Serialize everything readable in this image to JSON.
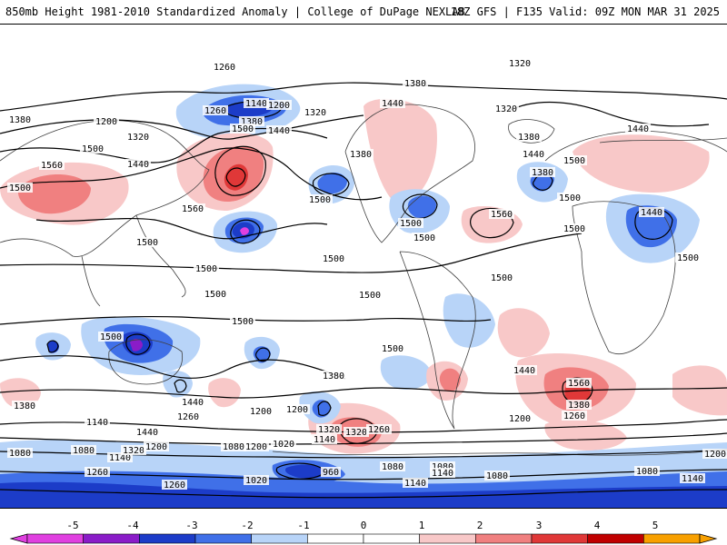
{
  "header": {
    "title": "850mb Height 1981-2010 Standardized Anomaly | College of DuPage NEXLAB",
    "valid": "18Z GFS | F135 Valid: 09Z MON MAR 31 2025"
  },
  "colors": {
    "neg5": "#e040e0",
    "neg4": "#8a1cc8",
    "neg3": "#1c3cc8",
    "neg2": "#4070e8",
    "neg1": "#b8d4f8",
    "zero": "#ffffff",
    "pos1": "#f8c8c8",
    "pos2": "#f08080",
    "pos3": "#e03838",
    "pos4": "#c00000",
    "pos5": "#f8a000",
    "contour": "#000000",
    "coast": "#404040"
  },
  "colorbar": {
    "ticks": [
      "-5",
      "-4",
      "-3",
      "-2",
      "-1",
      "0",
      "1",
      "2",
      "3",
      "4",
      "5"
    ]
  },
  "contour_labels": [
    "1260",
    "1320",
    "1380",
    "1440",
    "1380",
    "1200",
    "1140",
    "1200",
    "1260",
    "1320",
    "1380",
    "1320",
    "1500",
    "1440",
    "1560",
    "1440",
    "1380",
    "1500",
    "1560",
    "1380",
    "1440",
    "1500",
    "1320",
    "1440",
    "1380",
    "1500",
    "1500",
    "1560",
    "1500",
    "1500",
    "1440",
    "1500",
    "1500",
    "1500",
    "1500",
    "1500",
    "1500",
    "1500",
    "1500",
    "1500",
    "1500",
    "1440",
    "1380",
    "1560",
    "1500",
    "1380",
    "1260",
    "1500",
    "1380",
    "1320",
    "1440",
    "1200",
    "1260",
    "1140",
    "1080",
    "1200",
    "1440",
    "1320",
    "1260",
    "1200",
    "1080",
    "1140",
    "1140",
    "1080",
    "1320",
    "1200",
    "1080",
    "1140",
    "1020",
    "1200",
    "1260",
    "1080",
    "1020",
    "960",
    "1080",
    "1140",
    "1080",
    "1200",
    "1260",
    "1140"
  ]
}
